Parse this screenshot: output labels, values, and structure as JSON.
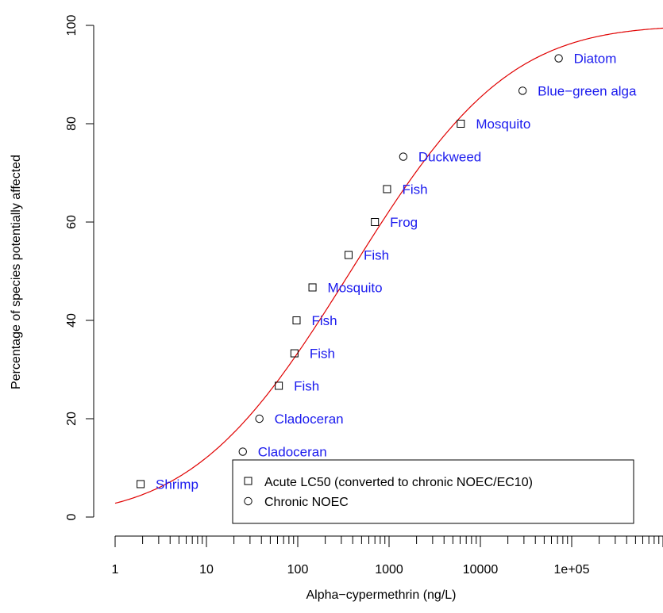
{
  "chart_data": {
    "type": "scatter",
    "xlabel": "Alpha−cypermethrin (ng/L)",
    "ylabel": "Percentage of species potentially affected",
    "x_scale": "log",
    "xlim": [
      1,
      1000000
    ],
    "ylim": [
      0,
      100
    ],
    "x_tick_values": [
      1,
      10,
      100,
      1000,
      10000,
      100000
    ],
    "x_tick_labels": [
      "1",
      "10",
      "100",
      "1000",
      "10000",
      "1e+05"
    ],
    "y_tick_values": [
      0,
      20,
      40,
      60,
      80,
      100
    ],
    "y_tick_labels": [
      "0",
      "20",
      "40",
      "60",
      "80",
      "100"
    ],
    "grid": false,
    "legend_position": "bottom-center",
    "legend": [
      {
        "marker": "square",
        "label": "Acute LC50 (converted to chronic NOEC/EC10)"
      },
      {
        "marker": "circle",
        "label": "Chronic NOEC"
      }
    ],
    "points": [
      {
        "species": "Shrimp",
        "type": "square",
        "x": 1.9,
        "y": 6.7
      },
      {
        "species": "Cladoceran",
        "type": "circle",
        "x": 25,
        "y": 13.3
      },
      {
        "species": "Cladoceran",
        "type": "circle",
        "x": 38,
        "y": 20
      },
      {
        "species": "Fish",
        "type": "square",
        "x": 62,
        "y": 26.7
      },
      {
        "species": "Fish",
        "type": "square",
        "x": 92,
        "y": 33.3
      },
      {
        "species": "Fish",
        "type": "square",
        "x": 97,
        "y": 40
      },
      {
        "species": "Mosquito",
        "type": "square",
        "x": 145,
        "y": 46.7
      },
      {
        "species": "Fish",
        "type": "square",
        "x": 360,
        "y": 53.3
      },
      {
        "species": "Frog",
        "type": "square",
        "x": 700,
        "y": 60
      },
      {
        "species": "Fish",
        "type": "square",
        "x": 950,
        "y": 66.7
      },
      {
        "species": "Duckweed",
        "type": "circle",
        "x": 1430,
        "y": 73.3
      },
      {
        "species": "Mosquito",
        "type": "square",
        "x": 6100,
        "y": 80
      },
      {
        "species": "Blue−green alga",
        "type": "circle",
        "x": 29000,
        "y": 86.7
      },
      {
        "species": "Diatom",
        "type": "circle",
        "x": 72000,
        "y": 93.3
      }
    ],
    "fitted_curve": {
      "type": "log-normal cumulative distribution",
      "median": 380,
      "log10_sd": 1.35,
      "color": "#e00000"
    },
    "colors": {
      "species_labels": "#1a1aee",
      "curve": "#e00000",
      "markers": "#000000"
    }
  }
}
